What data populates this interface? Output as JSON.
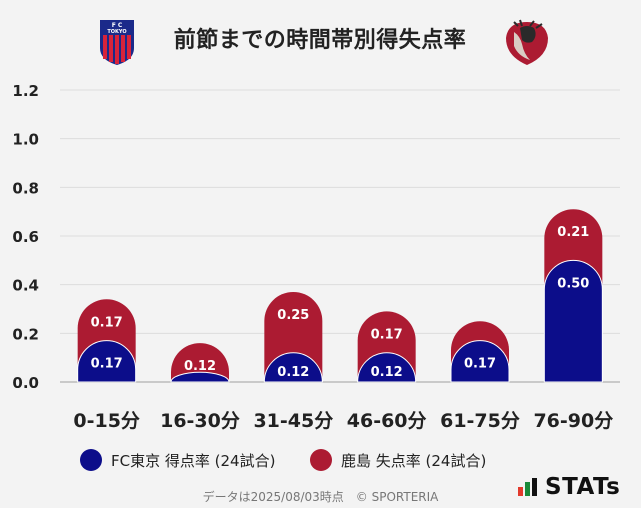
{
  "header": {
    "title": "前節までの時間帯別得失点率",
    "home_logo_text": "F C TOKYO"
  },
  "colors": {
    "home": "#0c0d8a",
    "away": "#ac1b32",
    "grid": "#dcdcdc",
    "axis": "#c9c9c9"
  },
  "chart_data": {
    "type": "bar",
    "stacked": true,
    "title": "前節までの時間帯別得失点率",
    "categories": [
      "0-15分",
      "16-30分",
      "31-45分",
      "46-60分",
      "61-75分",
      "76-90分"
    ],
    "series": [
      {
        "name": "FC東京 得点率 (24試合)",
        "values": [
          0.17,
          0.04,
          0.12,
          0.12,
          0.17,
          0.5
        ],
        "labels": [
          "0.17",
          "",
          "0.12",
          "0.12",
          "0.17",
          "0.50"
        ]
      },
      {
        "name": "鹿島 失点率 (24試合)",
        "values": [
          0.17,
          0.12,
          0.25,
          0.17,
          0.08,
          0.21
        ],
        "labels": [
          "0.17",
          "0.12",
          "0.25",
          "0.17",
          "",
          "0.21"
        ]
      }
    ],
    "yticks": [
      "0.0",
      "0.2",
      "0.4",
      "0.6",
      "0.8",
      "1.0",
      "1.2"
    ],
    "ylim": [
      0,
      1.2
    ],
    "grid": true,
    "legend": "bottom"
  },
  "legend": {
    "home_label": "FC東京 得点率 (24試合)",
    "away_label": "鹿島 失点率 (24試合)"
  },
  "footer": {
    "note": "データは2025/08/03時点　© SPORTERIA",
    "brand": "STATs"
  }
}
